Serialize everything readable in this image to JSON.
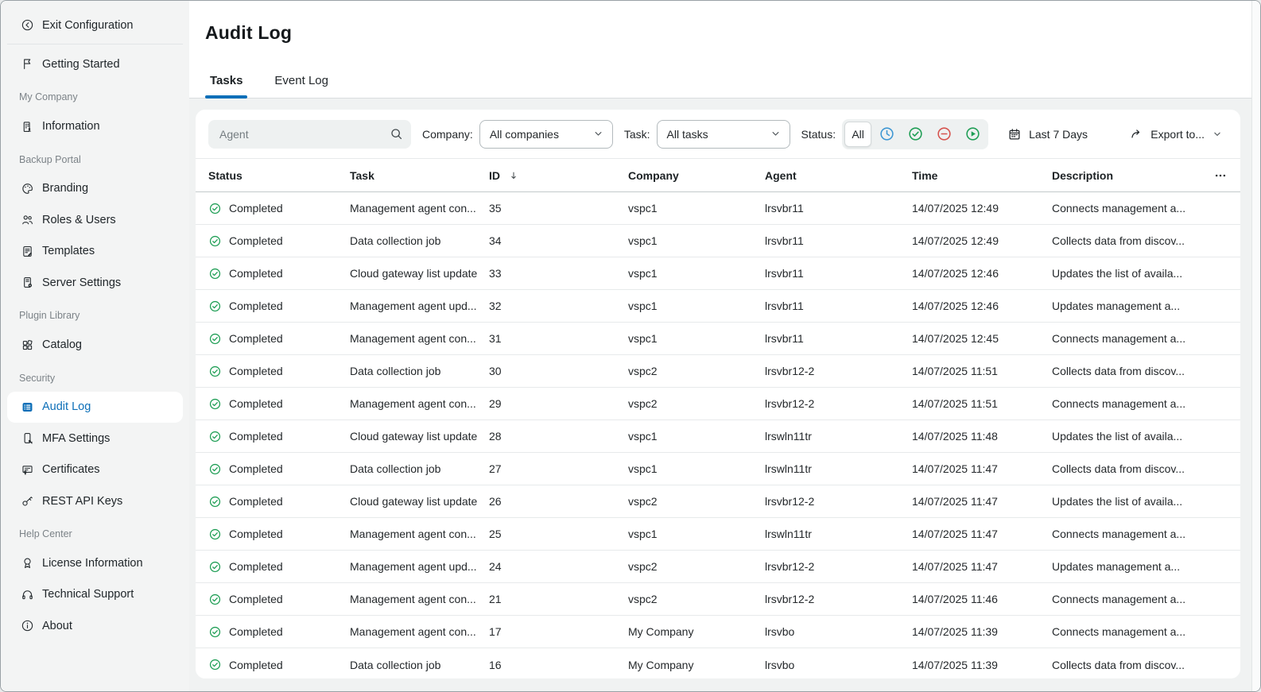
{
  "colors": {
    "accent_blue": "#0d6fb8",
    "success_green": "#1f9e55",
    "error_red": "#d6534e",
    "info_blue": "#3e97d3",
    "sidebar_bg": "#f3f4f4",
    "body_bg": "#f0f2f2"
  },
  "sidebar": {
    "exit_item": {
      "label": "Exit Configuration",
      "icon": "arrow-left-circle-icon"
    },
    "standalone": [
      {
        "label": "Getting Started",
        "icon": "flag-icon"
      }
    ],
    "sections": [
      {
        "label": "My Company",
        "items": [
          {
            "label": "Information",
            "icon": "building-icon"
          }
        ]
      },
      {
        "label": "Backup Portal",
        "items": [
          {
            "label": "Branding",
            "icon": "palette-icon"
          },
          {
            "label": "Roles & Users",
            "icon": "users-icon"
          },
          {
            "label": "Templates",
            "icon": "template-icon"
          },
          {
            "label": "Server Settings",
            "icon": "server-gear-icon"
          }
        ]
      },
      {
        "label": "Plugin Library",
        "items": [
          {
            "label": "Catalog",
            "icon": "catalog-grid-icon"
          }
        ]
      },
      {
        "label": "Security",
        "items": [
          {
            "label": "Audit Log",
            "icon": "audit-list-icon",
            "active": true
          },
          {
            "label": "MFA Settings",
            "icon": "mfa-phone-icon"
          },
          {
            "label": "Certificates",
            "icon": "certificate-icon"
          },
          {
            "label": "REST API Keys",
            "icon": "api-key-icon"
          }
        ]
      },
      {
        "label": "Help Center",
        "items": [
          {
            "label": "License Information",
            "icon": "license-award-icon"
          },
          {
            "label": "Technical Support",
            "icon": "headset-icon"
          },
          {
            "label": "About",
            "icon": "info-circle-icon"
          }
        ]
      }
    ]
  },
  "header": {
    "title": "Audit Log",
    "tabs": [
      {
        "label": "Tasks",
        "active": true
      },
      {
        "label": "Event Log",
        "active": false
      }
    ]
  },
  "filters": {
    "search_placeholder": "Agent",
    "company": {
      "label": "Company:",
      "value": "All companies"
    },
    "task": {
      "label": "Task:",
      "value": "All tasks"
    },
    "status": {
      "label": "Status:",
      "all_label": "All",
      "options": [
        {
          "name": "pending",
          "icon": "clock-icon"
        },
        {
          "name": "success",
          "icon": "check-circle-icon"
        },
        {
          "name": "failed",
          "icon": "minus-circle-icon"
        },
        {
          "name": "running",
          "icon": "play-circle-icon"
        }
      ]
    },
    "date_range_label": "Last 7 Days",
    "export_label": "Export to..."
  },
  "table": {
    "columns": [
      {
        "label": "Status"
      },
      {
        "label": "Task"
      },
      {
        "label": "ID",
        "sorted": "desc"
      },
      {
        "label": "Company"
      },
      {
        "label": "Agent"
      },
      {
        "label": "Time"
      },
      {
        "label": "Description"
      }
    ],
    "rows": [
      {
        "status": "Completed",
        "task": "Management agent con...",
        "id": "35",
        "company": "vspc1",
        "agent": "lrsvbr11",
        "time": "14/07/2025 12:49",
        "description": "Connects management a..."
      },
      {
        "status": "Completed",
        "task": "Data collection job",
        "id": "34",
        "company": "vspc1",
        "agent": "lrsvbr11",
        "time": "14/07/2025 12:49",
        "description": "Collects data from discov..."
      },
      {
        "status": "Completed",
        "task": "Cloud gateway list update",
        "id": "33",
        "company": "vspc1",
        "agent": "lrsvbr11",
        "time": "14/07/2025 12:46",
        "description": "Updates the list of availa..."
      },
      {
        "status": "Completed",
        "task": "Management agent upd...",
        "id": "32",
        "company": "vspc1",
        "agent": "lrsvbr11",
        "time": "14/07/2025 12:46",
        "description": "Updates management a..."
      },
      {
        "status": "Completed",
        "task": "Management agent con...",
        "id": "31",
        "company": "vspc1",
        "agent": "lrsvbr11",
        "time": "14/07/2025 12:45",
        "description": "Connects management a..."
      },
      {
        "status": "Completed",
        "task": "Data collection job",
        "id": "30",
        "company": "vspc2",
        "agent": "lrsvbr12-2",
        "time": "14/07/2025 11:51",
        "description": "Collects data from discov..."
      },
      {
        "status": "Completed",
        "task": "Management agent con...",
        "id": "29",
        "company": "vspc2",
        "agent": "lrsvbr12-2",
        "time": "14/07/2025 11:51",
        "description": "Connects management a..."
      },
      {
        "status": "Completed",
        "task": "Cloud gateway list update",
        "id": "28",
        "company": "vspc1",
        "agent": "lrswln11tr",
        "time": "14/07/2025 11:48",
        "description": "Updates the list of availa..."
      },
      {
        "status": "Completed",
        "task": "Data collection job",
        "id": "27",
        "company": "vspc1",
        "agent": "lrswln11tr",
        "time": "14/07/2025 11:47",
        "description": "Collects data from discov..."
      },
      {
        "status": "Completed",
        "task": "Cloud gateway list update",
        "id": "26",
        "company": "vspc2",
        "agent": "lrsvbr12-2",
        "time": "14/07/2025 11:47",
        "description": "Updates the list of availa..."
      },
      {
        "status": "Completed",
        "task": "Management agent con...",
        "id": "25",
        "company": "vspc1",
        "agent": "lrswln11tr",
        "time": "14/07/2025 11:47",
        "description": "Connects management a..."
      },
      {
        "status": "Completed",
        "task": "Management agent upd...",
        "id": "24",
        "company": "vspc2",
        "agent": "lrsvbr12-2",
        "time": "14/07/2025 11:47",
        "description": "Updates management a..."
      },
      {
        "status": "Completed",
        "task": "Management agent con...",
        "id": "21",
        "company": "vspc2",
        "agent": "lrsvbr12-2",
        "time": "14/07/2025 11:46",
        "description": "Connects management a..."
      },
      {
        "status": "Completed",
        "task": "Management agent con...",
        "id": "17",
        "company": "My Company",
        "agent": "lrsvbo",
        "time": "14/07/2025 11:39",
        "description": "Connects management a..."
      },
      {
        "status": "Completed",
        "task": "Data collection job",
        "id": "16",
        "company": "My Company",
        "agent": "lrsvbo",
        "time": "14/07/2025 11:39",
        "description": "Collects data from discov..."
      }
    ]
  }
}
